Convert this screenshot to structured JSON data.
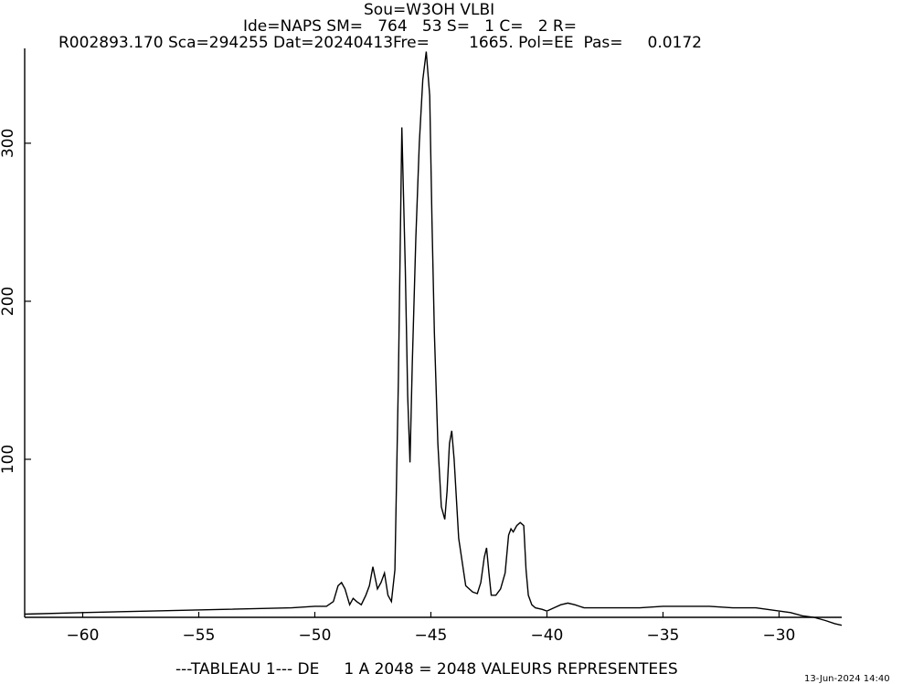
{
  "header": {
    "line1": "Sou=W3OH VLBI",
    "line2": "Ide=NAPS SM=   764   53 S=   1 C=   2 R=",
    "line3": "R002893.170 Sca=294255 Dat=20240413Fre=        1665. Pol=EE  Pas=     0.0172"
  },
  "footer": "---TABLEAU 1--- DE     1 A 2048 = 2048 VALEURS REPRESENTEES",
  "timestamp": "13-Jun-2024 14:40",
  "chart_data": {
    "type": "line",
    "title": "Sou=W3OH VLBI",
    "xlabel": "",
    "ylabel": "",
    "xlim": [
      -62.5,
      -27.3
    ],
    "ylim": [
      0,
      360
    ],
    "x_ticks": [
      -60,
      -55,
      -50,
      -45,
      -40,
      -35,
      -30
    ],
    "x_tick_labels": [
      "−60",
      "−55",
      "−50",
      "−45",
      "−40",
      "−35",
      "−30"
    ],
    "y_ticks": [
      100,
      200,
      300
    ],
    "y_tick_labels": [
      "100",
      "200",
      "300"
    ],
    "grid": false,
    "series": [
      {
        "color": "#000000",
        "x": [
          -62.5,
          -60,
          -57,
          -54,
          -51,
          -50,
          -49.5,
          -49.2,
          -49,
          -48.85,
          -48.7,
          -48.5,
          -48.35,
          -48.2,
          -48,
          -47.8,
          -47.65,
          -47.5,
          -47.3,
          -47.15,
          -47.0,
          -46.85,
          -46.7,
          -46.55,
          -46.4,
          -46.25,
          -46.1,
          -46.0,
          -45.9,
          -45.8,
          -45.65,
          -45.5,
          -45.35,
          -45.2,
          -45.05,
          -44.95,
          -44.85,
          -44.7,
          -44.55,
          -44.4,
          -44.3,
          -44.2,
          -44.1,
          -44.0,
          -43.8,
          -43.5,
          -43.2,
          -43.0,
          -42.85,
          -42.7,
          -42.6,
          -42.5,
          -42.4,
          -42.2,
          -42.0,
          -41.8,
          -41.65,
          -41.55,
          -41.45,
          -41.3,
          -41.15,
          -41.0,
          -40.9,
          -40.8,
          -40.65,
          -40.5,
          -40.2,
          -40.0,
          -39.7,
          -39.4,
          -39.1,
          -38.8,
          -38.4,
          -38.0,
          -37.0,
          -36.0,
          -35.0,
          -34.0,
          -33.0,
          -32.0,
          -31.0,
          -30.5,
          -30.0,
          -29.5,
          -29.0,
          -28.5,
          -28.0,
          -27.6,
          -27.3
        ],
        "y": [
          2,
          3,
          4,
          5,
          6,
          7,
          7,
          10,
          20,
          22,
          18,
          8,
          12,
          10,
          8,
          14,
          20,
          32,
          18,
          22,
          28,
          14,
          10,
          30,
          150,
          310,
          220,
          140,
          98,
          160,
          240,
          300,
          340,
          358,
          330,
          250,
          180,
          110,
          70,
          62,
          80,
          110,
          118,
          100,
          50,
          20,
          16,
          15,
          22,
          38,
          44,
          28,
          14,
          14,
          18,
          28,
          52,
          56,
          54,
          58,
          60,
          58,
          30,
          14,
          8,
          6,
          5,
          4,
          6,
          8,
          9,
          8,
          6,
          6,
          6,
          6,
          7,
          7,
          7,
          6,
          6,
          5,
          4,
          3,
          1,
          0,
          -2,
          -4,
          -5
        ]
      }
    ]
  }
}
